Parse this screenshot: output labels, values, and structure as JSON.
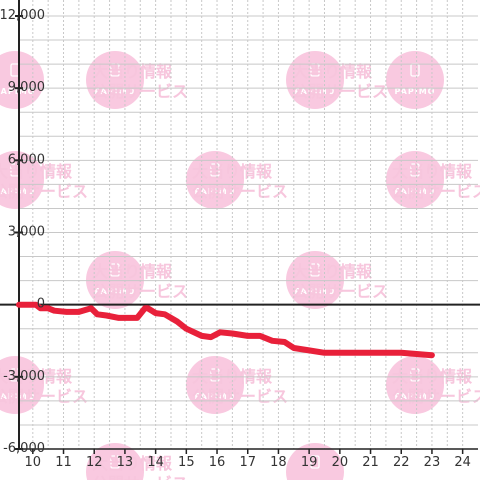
{
  "colors": {
    "line": "#e8203a",
    "grid": "#c8c8c8",
    "axis": "#222222",
    "background": "#ffffff",
    "watermark": "#f9c9e0",
    "watermark_text": "#f2b3d1"
  },
  "watermark": {
    "logo_text": "PAPIMO",
    "line1": "大当り情報",
    "line2": "公開サービス"
  },
  "chart_data": {
    "type": "line",
    "title": "",
    "xlabel": "",
    "ylabel": "",
    "x_ticks": [
      "10",
      "11",
      "12",
      "13",
      "14",
      "15",
      "16",
      "17",
      "18",
      "19",
      "20",
      "21",
      "22",
      "23",
      "24"
    ],
    "y_ticks": [
      "12,000",
      "9,000",
      "6,000",
      "3,000",
      "0",
      "-3,000",
      "-6,000"
    ],
    "ylim": [
      -6000,
      12000
    ],
    "xlim": [
      9.55,
      24.5
    ],
    "grid": true,
    "series": [
      {
        "points": [
          [
            9.55,
            0
          ],
          [
            10.1,
            0
          ],
          [
            10.25,
            -150
          ],
          [
            10.5,
            -150
          ],
          [
            10.7,
            -250
          ],
          [
            11.1,
            -300
          ],
          [
            11.5,
            -300
          ],
          [
            11.9,
            -150
          ],
          [
            12.1,
            -400
          ],
          [
            12.4,
            -450
          ],
          [
            12.8,
            -550
          ],
          [
            13.2,
            -550
          ],
          [
            13.4,
            -550
          ],
          [
            13.65,
            -150
          ],
          [
            13.75,
            -150
          ],
          [
            14.0,
            -350
          ],
          [
            14.3,
            -400
          ],
          [
            14.7,
            -700
          ],
          [
            15.0,
            -1000
          ],
          [
            15.5,
            -1300
          ],
          [
            15.8,
            -1350
          ],
          [
            16.1,
            -1150
          ],
          [
            16.5,
            -1200
          ],
          [
            17.0,
            -1300
          ],
          [
            17.4,
            -1300
          ],
          [
            17.8,
            -1500
          ],
          [
            18.2,
            -1550
          ],
          [
            18.5,
            -1800
          ],
          [
            19.0,
            -1900
          ],
          [
            19.5,
            -2000
          ],
          [
            20.0,
            -2000
          ],
          [
            21.0,
            -2000
          ],
          [
            22.0,
            -2000
          ],
          [
            22.5,
            -2050
          ],
          [
            23.0,
            -2100
          ]
        ]
      }
    ]
  }
}
